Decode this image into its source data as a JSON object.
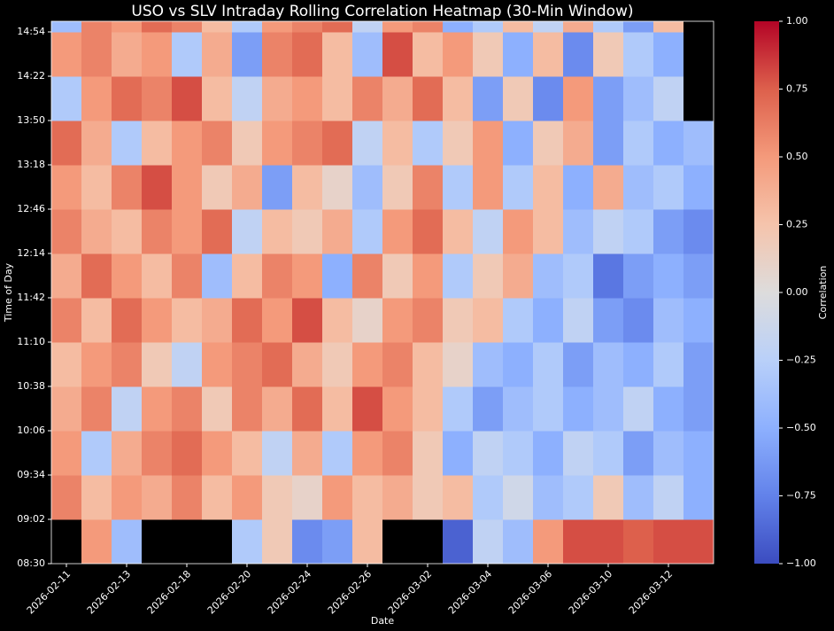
{
  "chart_data": {
    "type": "heatmap",
    "title": "USO vs SLV Intraday Rolling Correlation Heatmap (30-Min Window)",
    "x_label": "Date",
    "y_label": "Time of Day",
    "colorbar_label": "Correlation",
    "categories": [
      "2026-02-11",
      null,
      "2026-02-13",
      null,
      "2026-02-18",
      null,
      "2026-02-20",
      null,
      "2026-02-24",
      null,
      "2026-02-26",
      null,
      "2026-03-02",
      null,
      "2026-03-04",
      null,
      "2026-03-06",
      null,
      "2026-03-10",
      null,
      "2026-03-12",
      null
    ],
    "rows": [
      "08:30",
      "09:02",
      "09:34",
      "10:06",
      "10:38",
      "11:10",
      "11:42",
      "12:14",
      "12:46",
      "13:18",
      "13:50",
      "14:22",
      "14:54"
    ],
    "values": [
      [
        null,
        0.5,
        -0.4,
        null,
        null,
        null,
        -0.3,
        0.2,
        -0.7,
        -0.6,
        0.3,
        null,
        null,
        -0.9,
        -0.2,
        -0.4,
        0.5,
        0.8,
        0.8,
        0.75,
        0.8,
        0.8
      ],
      [
        0.6,
        0.3,
        0.5,
        0.4,
        0.6,
        0.3,
        0.5,
        0.2,
        0.1,
        0.5,
        0.3,
        0.4,
        0.2,
        0.3,
        -0.3,
        -0.1,
        -0.4,
        -0.3,
        0.2,
        -0.4,
        -0.2,
        -0.5
      ],
      [
        0.5,
        -0.3,
        0.4,
        0.6,
        0.7,
        0.5,
        0.3,
        -0.2,
        0.4,
        -0.3,
        0.5,
        0.6,
        0.2,
        -0.5,
        -0.2,
        -0.3,
        -0.5,
        -0.2,
        -0.3,
        -0.6,
        -0.4,
        -0.5
      ],
      [
        0.4,
        0.6,
        -0.2,
        0.5,
        0.6,
        0.2,
        0.6,
        0.4,
        0.7,
        0.3,
        0.8,
        0.5,
        0.3,
        -0.3,
        -0.6,
        -0.4,
        -0.3,
        -0.5,
        -0.4,
        -0.2,
        -0.5,
        -0.6
      ],
      [
        0.3,
        0.5,
        0.6,
        0.2,
        -0.2,
        0.5,
        0.6,
        0.7,
        0.4,
        0.2,
        0.5,
        0.6,
        0.3,
        0.1,
        -0.4,
        -0.5,
        -0.3,
        -0.6,
        -0.4,
        -0.5,
        -0.3,
        -0.6
      ],
      [
        0.6,
        0.3,
        0.7,
        0.5,
        0.3,
        0.4,
        0.7,
        0.5,
        0.8,
        0.3,
        0.1,
        0.5,
        0.6,
        0.2,
        0.3,
        -0.3,
        -0.5,
        -0.2,
        -0.6,
        -0.7,
        -0.4,
        -0.5
      ],
      [
        0.4,
        0.7,
        0.5,
        0.3,
        0.6,
        -0.4,
        0.3,
        0.6,
        0.5,
        -0.5,
        0.6,
        0.2,
        0.5,
        -0.3,
        0.2,
        0.4,
        -0.4,
        -0.3,
        -0.8,
        -0.6,
        -0.5,
        -0.6
      ],
      [
        0.6,
        0.4,
        0.3,
        0.6,
        0.5,
        0.7,
        -0.2,
        0.3,
        0.2,
        0.4,
        -0.3,
        0.5,
        0.7,
        0.3,
        -0.2,
        0.5,
        0.3,
        -0.4,
        -0.2,
        -0.3,
        -0.6,
        -0.7
      ],
      [
        0.5,
        0.3,
        0.6,
        0.8,
        0.5,
        0.2,
        0.4,
        -0.6,
        0.3,
        0.1,
        -0.4,
        0.2,
        0.6,
        -0.3,
        0.5,
        -0.3,
        0.3,
        -0.5,
        0.4,
        -0.4,
        -0.3,
        -0.5
      ],
      [
        0.7,
        0.4,
        -0.3,
        0.3,
        0.5,
        0.6,
        0.2,
        0.5,
        0.6,
        0.7,
        -0.2,
        0.3,
        -0.3,
        0.2,
        0.5,
        -0.5,
        0.2,
        0.4,
        -0.6,
        -0.3,
        -0.5,
        -0.4
      ],
      [
        -0.3,
        0.5,
        0.7,
        0.6,
        0.8,
        0.3,
        -0.2,
        0.4,
        0.5,
        0.3,
        0.6,
        0.4,
        0.7,
        0.3,
        -0.6,
        0.2,
        -0.7,
        0.5,
        -0.6,
        -0.4,
        -0.2,
        null
      ],
      [
        0.5,
        0.6,
        0.4,
        0.5,
        -0.3,
        0.4,
        -0.6,
        0.6,
        0.7,
        0.3,
        -0.4,
        0.8,
        0.3,
        0.5,
        0.2,
        -0.5,
        0.3,
        -0.7,
        0.2,
        -0.3,
        -0.5,
        null
      ],
      [
        -0.4,
        0.6,
        0.5,
        0.7,
        0.6,
        0.3,
        -0.3,
        0.5,
        0.6,
        0.7,
        -0.2,
        0.5,
        0.6,
        -0.5,
        -0.3,
        0.3,
        -0.2,
        0.4,
        -0.3,
        -0.6,
        0.3,
        null
      ]
    ],
    "clim": [
      -1,
      1
    ],
    "cticks": [
      {
        "value": -1,
        "label": "−1.00"
      },
      {
        "value": -0.75,
        "label": "−0.75"
      },
      {
        "value": -0.5,
        "label": "−0.50"
      },
      {
        "value": -0.25,
        "label": "−0.25"
      },
      {
        "value": 0,
        "label": "0.00"
      },
      {
        "value": 0.25,
        "label": "0.25"
      },
      {
        "value": 0.5,
        "label": "0.50"
      },
      {
        "value": 0.75,
        "label": "0.75"
      },
      {
        "value": 1,
        "label": "1.00"
      }
    ],
    "colormap": [
      "#3b4cc0",
      "#6282ea",
      "#8db0fe",
      "#b9d0f9",
      "#dddcdc",
      "#f5c4ac",
      "#f49a7b",
      "#dd604c",
      "#b40426"
    ],
    "missing_color": "#000000"
  }
}
